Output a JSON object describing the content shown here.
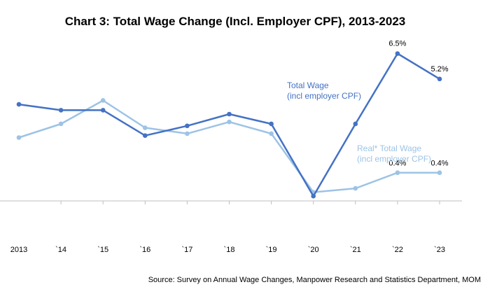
{
  "chart_data": {
    "type": "line",
    "title": "Chart 3: Total Wage Change (Incl. Employer CPF), 2013-2023",
    "categories": [
      "2013",
      "`14",
      "`15",
      "`16",
      "`17",
      "`18",
      "`19",
      "`20",
      "`21",
      "`22",
      "`23"
    ],
    "series": [
      {
        "name": "Total Wage",
        "name_line2": "(incl employer CPF)",
        "color": "#4472c4",
        "values": [
          3.9,
          3.6,
          3.6,
          2.3,
          2.8,
          3.4,
          2.9,
          -0.8,
          2.9,
          6.5,
          5.2
        ],
        "labels": [
          "",
          "",
          "",
          "",
          "",
          "",
          "",
          "",
          "",
          "6.5%",
          "5.2%"
        ]
      },
      {
        "name": "Real* Total Wage",
        "name_line2": "(incl employer CPF)",
        "color": "#9dc3e6",
        "values": [
          2.2,
          2.9,
          4.1,
          2.7,
          2.4,
          3.0,
          2.4,
          -0.6,
          -0.4,
          0.4,
          0.4
        ],
        "labels": [
          "",
          "",
          "",
          "",
          "",
          "",
          "",
          "",
          "",
          "0.4%",
          "0.4%"
        ]
      }
    ],
    "ylim": [
      -3.3,
      7.7
    ],
    "grid": false,
    "source": "Source: Survey on Annual Wage Changes, Manpower Research and Statistics Department, MOM"
  }
}
